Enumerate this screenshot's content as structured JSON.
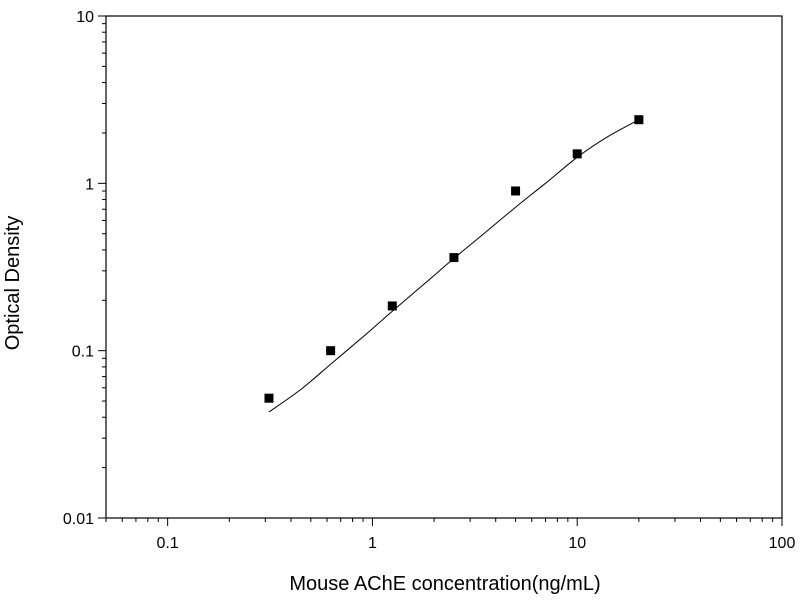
{
  "chart_data": {
    "type": "scatter",
    "title": "",
    "xlabel": "Mouse AChE concentration(ng/mL)",
    "ylabel": "Optical Density",
    "x_scale": "log",
    "y_scale": "log",
    "xlim": [
      0.05,
      100
    ],
    "ylim": [
      0.01,
      10
    ],
    "x_tick_values": [
      0.1,
      1,
      10,
      100
    ],
    "x_tick_labels": [
      "0.1",
      "1",
      "10",
      "100"
    ],
    "y_tick_values": [
      0.01,
      0.1,
      1,
      10
    ],
    "y_tick_labels": [
      "0.01",
      "0.1",
      "1",
      "10"
    ],
    "grid": false,
    "legend": "none",
    "marker_color": "#000000",
    "line_color": "#000000",
    "series": [
      {
        "marker": "square",
        "x": [
          0.3125,
          0.625,
          1.25,
          2.5,
          5,
          10,
          20
        ],
        "y": [
          0.052,
          0.1,
          0.185,
          0.36,
          0.9,
          1.5,
          2.4
        ]
      }
    ],
    "fit_curve": {
      "x": [
        0.3125,
        0.45,
        0.625,
        0.9,
        1.25,
        1.8,
        2.5,
        3.5,
        5,
        7,
        10,
        14,
        20
      ],
      "y": [
        0.043,
        0.059,
        0.083,
        0.121,
        0.172,
        0.252,
        0.356,
        0.5,
        0.72,
        1.0,
        1.43,
        1.89,
        2.4
      ]
    }
  }
}
